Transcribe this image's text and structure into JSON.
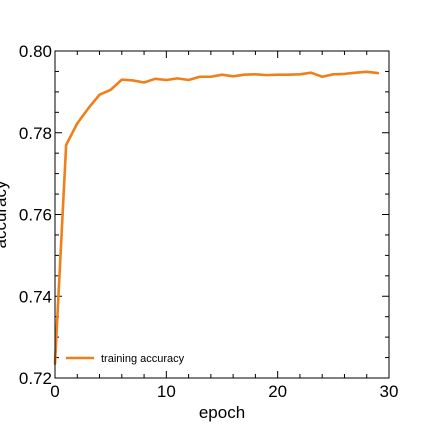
{
  "chart_data": {
    "type": "line",
    "xlabel": "epoch",
    "ylabel": "accuracy",
    "xlim": [
      0,
      30
    ],
    "ylim": [
      0.72,
      0.8
    ],
    "xticks": [
      {
        "value": 0,
        "label": "0"
      },
      {
        "value": 10,
        "label": "10"
      },
      {
        "value": 20,
        "label": "20"
      },
      {
        "value": 30,
        "label": "30"
      }
    ],
    "yticks": [
      {
        "value": 0.72,
        "label": "0.72"
      },
      {
        "value": 0.74,
        "label": "0.74"
      },
      {
        "value": 0.76,
        "label": "0.76"
      },
      {
        "value": 0.78,
        "label": "0.78"
      },
      {
        "value": 0.8,
        "label": "0.80"
      }
    ],
    "legend_position": "lower-left",
    "grid": false,
    "series": [
      {
        "name": "training accuracy",
        "color": "#f07f1a",
        "x": [
          0,
          1,
          2,
          3,
          4,
          5,
          6,
          7,
          8,
          9,
          10,
          11,
          12,
          13,
          14,
          15,
          16,
          17,
          18,
          19,
          20,
          21,
          22,
          23,
          24,
          25,
          26,
          27,
          28,
          29
        ],
        "y": [
          0.7235,
          0.777,
          0.7823,
          0.786,
          0.7893,
          0.7905,
          0.793,
          0.7928,
          0.7923,
          0.7932,
          0.7929,
          0.7933,
          0.7929,
          0.7937,
          0.7937,
          0.7942,
          0.7938,
          0.7942,
          0.7943,
          0.7941,
          0.7942,
          0.7942,
          0.7943,
          0.7947,
          0.7937,
          0.7943,
          0.7944,
          0.7947,
          0.7949,
          0.7946
        ]
      }
    ]
  }
}
